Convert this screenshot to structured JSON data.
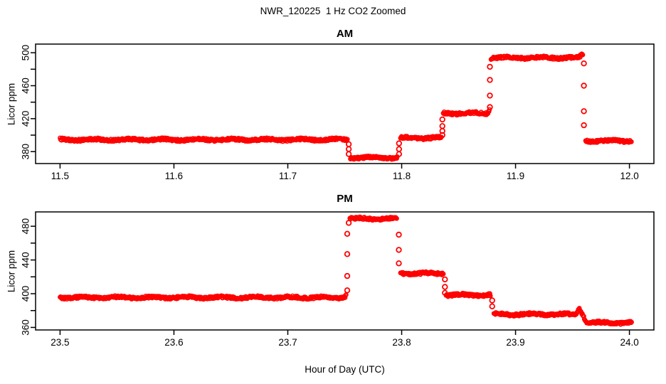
{
  "figure": {
    "title": "NWR_120225  1 Hz CO2 Zoomed",
    "xlabel": "Hour of Day (UTC)",
    "background": "#FFFFFF",
    "axis_color": "#000000"
  },
  "chart_data": [
    {
      "type": "scatter",
      "title": "AM",
      "ylabel": "Licor ppm",
      "marker": "open-circle",
      "color": "#FF0000",
      "grid": false,
      "xlim": [
        11.4785,
        12.0215
      ],
      "ylim": [
        365.5,
        510.5
      ],
      "x_ticks": [
        {
          "v": 11.5,
          "label": "11.5"
        },
        {
          "v": 11.6,
          "label": "11.6"
        },
        {
          "v": 11.7,
          "label": "11.7"
        },
        {
          "v": 11.8,
          "label": "11.8"
        },
        {
          "v": 11.9,
          "label": "11.9"
        },
        {
          "v": 12.0,
          "label": "12.0"
        }
      ],
      "y_ticks": [
        {
          "v": 380,
          "label": "380"
        },
        {
          "v": 400,
          "label": ""
        },
        {
          "v": 420,
          "label": "420"
        },
        {
          "v": 440,
          "label": ""
        },
        {
          "v": 460,
          "label": "460"
        },
        {
          "v": 480,
          "label": ""
        },
        {
          "v": 500,
          "label": "500"
        }
      ],
      "segments": [
        {
          "from": 11.5,
          "to": 11.7525,
          "v": 394.5
        },
        {
          "from": 11.755,
          "to": 11.7965,
          "v": 372.5
        },
        {
          "from": 11.799,
          "to": 11.835,
          "v": 396.5
        },
        {
          "from": 11.8365,
          "to": 11.8745,
          "v": 426.5
        },
        {
          "from": 11.8745,
          "to": 11.8772,
          "v": 426.5,
          "v2": 430.5
        },
        {
          "from": 11.8785,
          "to": 11.9555,
          "v": 494.0
        },
        {
          "from": 11.9555,
          "to": 11.959,
          "v": 494.0,
          "v2": 498.0
        },
        {
          "from": 11.9615,
          "to": 12.002,
          "v": 393.0
        }
      ],
      "transitions": [
        {
          "x": 11.7535,
          "values": [
            389,
            383,
            377
          ]
        },
        {
          "x": 11.7977,
          "values": [
            377,
            383,
            390
          ]
        },
        {
          "x": 11.8357,
          "values": [
            400,
            405,
            411,
            419
          ]
        },
        {
          "x": 11.8775,
          "values": [
            434,
            448,
            467,
            483
          ]
        },
        {
          "x": 11.96,
          "values": [
            487,
            460,
            429,
            412
          ]
        }
      ]
    },
    {
      "type": "scatter",
      "title": "PM",
      "ylabel": "Licor ppm",
      "marker": "open-circle",
      "color": "#FF0000",
      "grid": false,
      "xlim": [
        23.4785,
        24.0215
      ],
      "ylim": [
        357.0,
        497.0
      ],
      "x_ticks": [
        {
          "v": 23.5,
          "label": "23.5"
        },
        {
          "v": 23.6,
          "label": "23.6"
        },
        {
          "v": 23.7,
          "label": "23.7"
        },
        {
          "v": 23.8,
          "label": "23.8"
        },
        {
          "v": 23.9,
          "label": "23.9"
        },
        {
          "v": 24.0,
          "label": "24.0"
        }
      ],
      "y_ticks": [
        {
          "v": 360,
          "label": "360"
        },
        {
          "v": 380,
          "label": ""
        },
        {
          "v": 400,
          "label": "400"
        },
        {
          "v": 420,
          "label": ""
        },
        {
          "v": 440,
          "label": "440"
        },
        {
          "v": 460,
          "label": ""
        },
        {
          "v": 480,
          "label": "480"
        }
      ],
      "segments": [
        {
          "from": 23.5,
          "to": 23.749,
          "v": 395.5
        },
        {
          "from": 23.749,
          "to": 23.7515,
          "v": 395.5,
          "v2": 398.5
        },
        {
          "from": 23.7545,
          "to": 23.796,
          "v": 489.0
        },
        {
          "from": 23.799,
          "to": 23.837,
          "v": 424.0
        },
        {
          "from": 23.839,
          "to": 23.878,
          "v": 398.5
        },
        {
          "from": 23.881,
          "to": 23.9525,
          "v": 375.5
        },
        {
          "from": 23.9525,
          "to": 23.956,
          "v": 375.5,
          "v2": 383.0
        },
        {
          "from": 23.956,
          "to": 23.9625,
          "v": 383.0,
          "v2": 366.0
        },
        {
          "from": 23.9625,
          "to": 24.002,
          "v": 365.5
        }
      ],
      "transitions": [
        {
          "x": 23.7522,
          "values": [
            404,
            421,
            447,
            471
          ]
        },
        {
          "x": 23.7535,
          "values": [
            484
          ]
        },
        {
          "x": 23.7975,
          "values": [
            470,
            452,
            436
          ]
        },
        {
          "x": 23.838,
          "values": [
            417,
            408,
            401
          ]
        },
        {
          "x": 23.8795,
          "values": [
            392,
            385
          ]
        }
      ]
    }
  ]
}
